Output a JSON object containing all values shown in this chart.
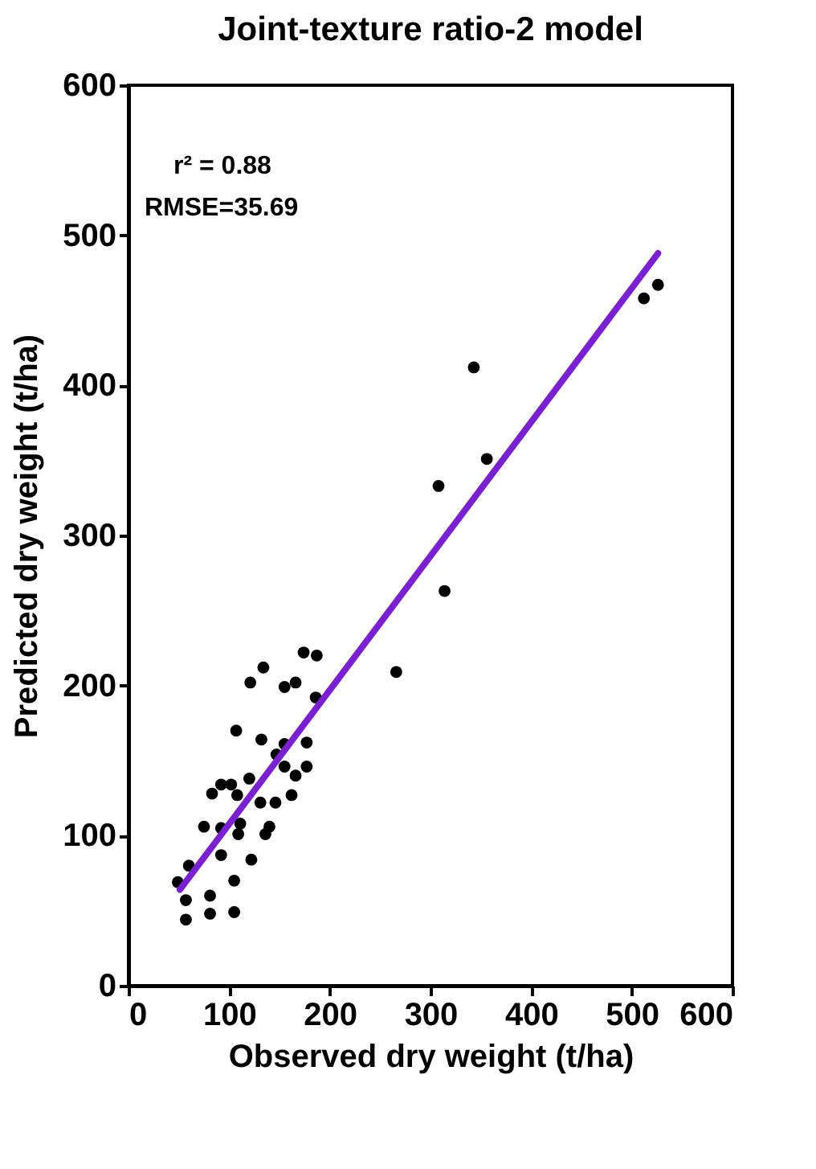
{
  "chart_data": {
    "type": "scatter",
    "title": "Joint-texture ratio-2 model",
    "xlabel": "Observed dry weight (t/ha)",
    "ylabel": "Predicted dry weight (t/ha)",
    "annotations": [
      "r² = 0.88",
      "RMSE=35.69"
    ],
    "xlim": [
      0,
      600
    ],
    "xticks": [
      0,
      100,
      200,
      300,
      400,
      500,
      600
    ],
    "ylim": [
      0,
      600
    ],
    "yticks": [
      0,
      100,
      200,
      300,
      400,
      500,
      600
    ],
    "grid": false,
    "marker": "circle",
    "series": [
      {
        "color": "#000000",
        "x": [
          174,
          187,
          134,
          121,
          155,
          166,
          266,
          186,
          107,
          132,
          155,
          177,
          147,
          155,
          177,
          166,
          120,
          92,
          102,
          83,
          108,
          131,
          146,
          162,
          75,
          92,
          111,
          109,
          140,
          136,
          92,
          122,
          60,
          49,
          105,
          57,
          81,
          81,
          105,
          57,
          343,
          356,
          308,
          314,
          512,
          526
        ],
        "values": [
          222,
          220,
          212,
          202,
          199,
          202,
          209,
          192,
          170,
          164,
          161,
          162,
          154,
          146,
          146,
          140,
          138,
          134,
          134,
          128,
          127,
          122,
          122,
          127,
          106,
          105,
          108,
          101,
          106,
          101,
          87,
          84,
          80,
          69,
          70,
          57,
          60,
          48,
          49,
          44,
          412,
          351,
          333,
          263,
          458,
          467
        ]
      },
      {
        "type": "line",
        "color": "#7a1fd1",
        "line_style": "solid",
        "marker": "none",
        "x": [
          51,
          526
        ],
        "values": [
          64,
          488
        ]
      }
    ]
  }
}
